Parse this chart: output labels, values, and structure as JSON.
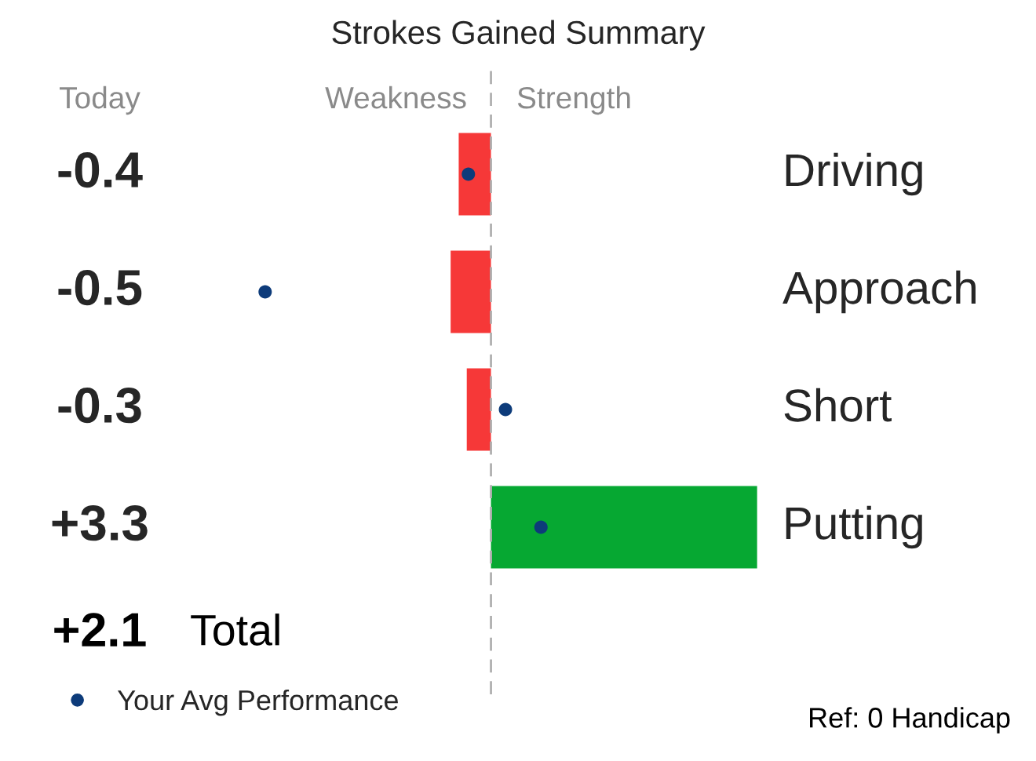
{
  "chart_data": {
    "type": "bar",
    "orientation": "horizontal",
    "title": "Strokes Gained Summary",
    "categories": [
      "Driving",
      "Approach",
      "Short",
      "Putting"
    ],
    "series": [
      {
        "colors": [
          "#f63838",
          "#f63838",
          "#f63838",
          "#06a832"
        ],
        "values": [
          -0.4,
          -0.5,
          -0.3,
          3.3
        ],
        "value_labels": [
          "-0.4",
          "-0.5",
          "-0.3",
          "+3.3"
        ]
      },
      {
        "type": "scatter",
        "name": "Your Avg Performance",
        "color": "#0d3b7a",
        "values": [
          -0.28,
          -2.8,
          0.18,
          0.62
        ]
      }
    ],
    "legend": "bottom left",
    "marker": "circle",
    "ref_lines": [
      {
        "axis": "x",
        "value": 0,
        "color": "#b0b0b0",
        "line_style": "dashed"
      }
    ],
    "annotations": [
      "Today",
      "Weakness",
      "Strength",
      "+2.1",
      "Total",
      "Ref: 0 Handicap"
    ]
  }
}
